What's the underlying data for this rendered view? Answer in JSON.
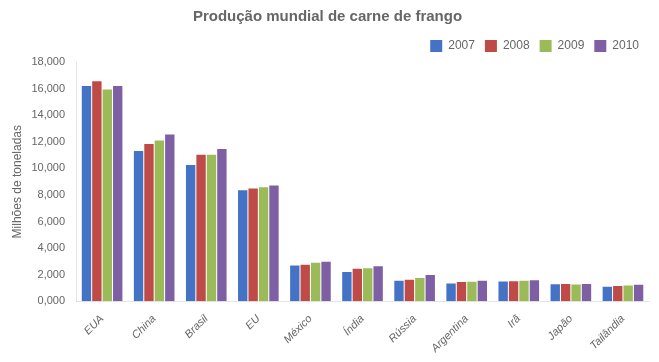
{
  "chart_data": {
    "type": "bar",
    "title": "Produção mundial de carne de frango",
    "ylabel": "Milhões de toneladas",
    "categories": [
      "EUA",
      "China",
      "Brasil",
      "EU",
      "México",
      "Índia",
      "Rússia",
      "Argentina",
      "Irã",
      "Japão",
      "Tailândia"
    ],
    "series": [
      {
        "name": "2007",
        "color": "#4472C4",
        "values": [
          16200,
          11300,
          10250,
          8350,
          2700,
          2200,
          1550,
          1350,
          1500,
          1290,
          1100
        ]
      },
      {
        "name": "2008",
        "color": "#BE4B48",
        "values": [
          16561,
          11840,
          11033,
          8480,
          2750,
          2450,
          1630,
          1450,
          1520,
          1310,
          1150
        ]
      },
      {
        "name": "2009",
        "color": "#9BBB59",
        "values": [
          15930,
          12100,
          11023,
          8580,
          2900,
          2490,
          1750,
          1470,
          1550,
          1270,
          1200
        ]
      },
      {
        "name": "2010",
        "color": "#7F5FA4",
        "values": [
          16186,
          12550,
          11460,
          8720,
          2970,
          2650,
          1980,
          1550,
          1580,
          1300,
          1250
        ]
      }
    ],
    "ylim": [
      0,
      18000
    ],
    "yticks": [
      {
        "value": 0,
        "label": "0,000"
      },
      {
        "value": 2000,
        "label": "2,000"
      },
      {
        "value": 4000,
        "label": "4,000"
      },
      {
        "value": 6000,
        "label": "6,000"
      },
      {
        "value": 8000,
        "label": "8,000"
      },
      {
        "value": 10000,
        "label": "10,000"
      },
      {
        "value": 12000,
        "label": "12,000"
      },
      {
        "value": 14000,
        "label": "14,000"
      },
      {
        "value": 16000,
        "label": "16,000"
      },
      {
        "value": 18000,
        "label": "18,000"
      }
    ],
    "grid": false,
    "legend": "upper right"
  }
}
